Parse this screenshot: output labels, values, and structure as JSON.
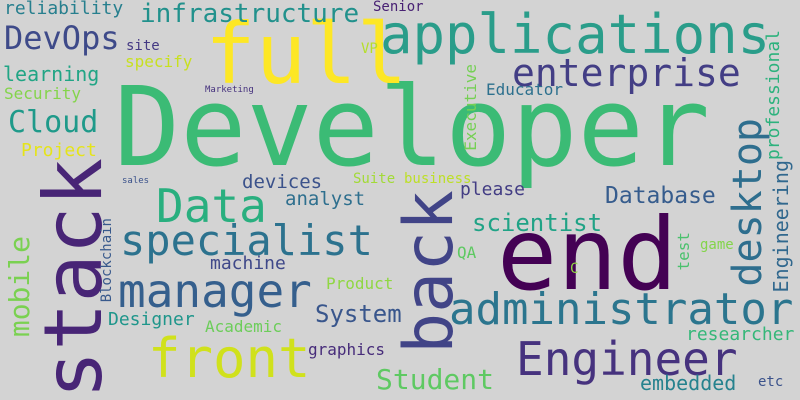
{
  "words": [
    {
      "text": "Developer",
      "color": "#3bbb75"
    },
    {
      "text": "end",
      "color": "#440154"
    },
    {
      "text": "stack",
      "color": "#482576"
    },
    {
      "text": "full",
      "color": "#fde725"
    },
    {
      "text": "back",
      "color": "#414487"
    },
    {
      "text": "applications",
      "color": "#2a9d8a"
    },
    {
      "text": "front",
      "color": "#d0e11c"
    },
    {
      "text": "administrator",
      "color": "#2b758e"
    },
    {
      "text": "Engineer",
      "color": "#46327e"
    },
    {
      "text": "desktop",
      "color": "#2e6e8e"
    },
    {
      "text": "manager",
      "color": "#355f8d"
    },
    {
      "text": "specialist",
      "color": "#2c728e"
    },
    {
      "text": "Data",
      "color": "#29af7f"
    },
    {
      "text": "enterprise",
      "color": "#433e85"
    },
    {
      "text": "mobile",
      "color": "#7ad151"
    },
    {
      "text": "Cloud",
      "color": "#1f9a8a"
    },
    {
      "text": "DevOps",
      "color": "#3e4a89"
    },
    {
      "text": "infrastructure",
      "color": "#21918c"
    },
    {
      "text": "Student",
      "color": "#5ec962"
    },
    {
      "text": "Database",
      "color": "#365c8d"
    },
    {
      "text": "scientist",
      "color": "#20a386"
    },
    {
      "text": "System",
      "color": "#39568c"
    },
    {
      "text": "Engineering",
      "color": "#31688e"
    },
    {
      "text": "professional",
      "color": "#2db27d"
    },
    {
      "text": "embedded",
      "color": "#26828e"
    },
    {
      "text": "researcher",
      "color": "#35b779"
    },
    {
      "text": "learning",
      "color": "#21a585"
    },
    {
      "text": "reliability",
      "color": "#277f8e"
    },
    {
      "text": "devices",
      "color": "#3b528b"
    },
    {
      "text": "analyst",
      "color": "#2e6f8e"
    },
    {
      "text": "machine",
      "color": "#3f4889"
    },
    {
      "text": "Designer",
      "color": "#1f968b"
    },
    {
      "text": "Academic",
      "color": "#6ccd5a"
    },
    {
      "text": "Product",
      "color": "#90d743"
    },
    {
      "text": "graphics",
      "color": "#472c7a"
    },
    {
      "text": "business",
      "color": "#bddf26"
    },
    {
      "text": "please",
      "color": "#433d84"
    },
    {
      "text": "Executive",
      "color": "#75d054"
    },
    {
      "text": "Educator",
      "color": "#2d708e"
    },
    {
      "text": "Security",
      "color": "#84d44b"
    },
    {
      "text": "Project",
      "color": "#e5e419"
    },
    {
      "text": "specify",
      "color": "#c8e020"
    },
    {
      "text": "Senior",
      "color": "#482173"
    },
    {
      "text": "site",
      "color": "#443983"
    },
    {
      "text": "VP",
      "color": "#b5de2b"
    },
    {
      "text": "Suite",
      "color": "#a2da37"
    },
    {
      "text": "Blockchain",
      "color": "#38598c"
    },
    {
      "text": "QA",
      "color": "#5ec962"
    },
    {
      "text": "test",
      "color": "#4ac16d"
    },
    {
      "text": "game",
      "color": "#84d44b"
    },
    {
      "text": "C",
      "color": "#90d743"
    },
    {
      "text": "etc",
      "color": "#3b528b"
    },
    {
      "text": "Marketing",
      "color": "#46327e"
    },
    {
      "text": "sales",
      "color": "#3b528b"
    }
  ]
}
